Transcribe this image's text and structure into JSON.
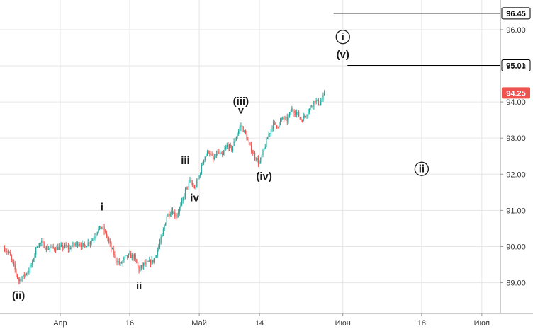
{
  "chart_data": {
    "type": "candlestick",
    "title": "",
    "xlabel": "",
    "ylabel": "",
    "ylim": [
      88.15,
      96.82
    ],
    "xlim": [
      "2018-03-19",
      "2018-07-05"
    ],
    "grid": true,
    "y_ticks": [
      "89.00",
      "90.00",
      "91.00",
      "92.00",
      "93.00",
      "94.00",
      "95.00",
      "96.00"
    ],
    "x_ticks": [
      {
        "date": "2018-04-01",
        "label": "Апр"
      },
      {
        "date": "2018-04-16",
        "label": "16"
      },
      {
        "date": "2018-05-01",
        "label": "Май"
      },
      {
        "date": "2018-05-14",
        "label": "14"
      },
      {
        "date": "2018-06-01",
        "label": "Июн"
      },
      {
        "date": "2018-06-18",
        "label": "18"
      },
      {
        "date": "2018-07-01",
        "label": "Июл"
      }
    ],
    "price_path": [
      [
        "2018-03-20",
        89.95
      ],
      [
        "2018-03-21",
        89.8
      ],
      [
        "2018-03-22",
        89.45
      ],
      [
        "2018-03-23",
        89.05
      ],
      [
        "2018-03-25",
        89.3
      ],
      [
        "2018-03-26",
        89.55
      ],
      [
        "2018-03-27",
        90.05
      ],
      [
        "2018-03-28",
        90.1
      ],
      [
        "2018-03-29",
        89.95
      ],
      [
        "2018-03-31",
        89.95
      ],
      [
        "2018-04-02",
        90.0
      ],
      [
        "2018-04-03",
        89.95
      ],
      [
        "2018-04-04",
        90.05
      ],
      [
        "2018-04-05",
        90.1
      ],
      [
        "2018-04-06",
        90.0
      ],
      [
        "2018-04-08",
        90.2
      ],
      [
        "2018-04-09",
        90.45
      ],
      [
        "2018-04-10",
        90.55
      ],
      [
        "2018-04-11",
        90.3
      ],
      [
        "2018-04-12",
        89.95
      ],
      [
        "2018-04-13",
        89.65
      ],
      [
        "2018-04-14",
        89.5
      ],
      [
        "2018-04-15",
        89.7
      ],
      [
        "2018-04-16",
        89.75
      ],
      [
        "2018-04-17",
        89.7
      ],
      [
        "2018-04-18",
        89.35
      ],
      [
        "2018-04-19",
        89.5
      ],
      [
        "2018-04-21",
        89.6
      ],
      [
        "2018-04-22",
        89.9
      ],
      [
        "2018-04-23",
        90.3
      ],
      [
        "2018-04-24",
        90.85
      ],
      [
        "2018-04-25",
        91.0
      ],
      [
        "2018-04-26",
        90.85
      ],
      [
        "2018-04-27",
        91.1
      ],
      [
        "2018-04-28",
        91.55
      ],
      [
        "2018-04-29",
        91.8
      ],
      [
        "2018-04-30",
        91.6
      ],
      [
        "2018-05-01",
        91.95
      ],
      [
        "2018-05-02",
        92.45
      ],
      [
        "2018-05-03",
        92.65
      ],
      [
        "2018-05-04",
        92.4
      ],
      [
        "2018-05-05",
        92.6
      ],
      [
        "2018-05-06",
        92.5
      ],
      [
        "2018-05-07",
        92.8
      ],
      [
        "2018-05-08",
        92.7
      ],
      [
        "2018-05-09",
        93.05
      ],
      [
        "2018-05-10",
        93.35
      ],
      [
        "2018-05-11",
        93.1
      ],
      [
        "2018-05-12",
        92.75
      ],
      [
        "2018-05-13",
        92.5
      ],
      [
        "2018-05-14",
        92.3
      ],
      [
        "2018-05-15",
        92.7
      ],
      [
        "2018-05-16",
        93.1
      ],
      [
        "2018-05-17",
        93.4
      ],
      [
        "2018-05-18",
        93.35
      ],
      [
        "2018-05-19",
        93.55
      ],
      [
        "2018-05-20",
        93.5
      ],
      [
        "2018-05-21",
        93.8
      ],
      [
        "2018-05-22",
        93.7
      ],
      [
        "2018-05-23",
        93.5
      ],
      [
        "2018-05-24",
        93.65
      ],
      [
        "2018-05-25",
        93.85
      ],
      [
        "2018-05-26",
        94.05
      ],
      [
        "2018-05-27",
        93.95
      ],
      [
        "2018-05-28",
        94.2
      ]
    ],
    "price_lines": [
      {
        "value": 96.45,
        "label": "96.45",
        "from": "2018-05-30"
      },
      {
        "value": 95.01,
        "label": "95.01",
        "from": "2018-06-02"
      }
    ],
    "last_price": {
      "value": 94.25,
      "label": "94.25",
      "color": "#ef5350"
    },
    "wave_labels": [
      {
        "text": "(ii)",
        "date": "2018-03-23",
        "price": 88.55,
        "circled": false
      },
      {
        "text": "i",
        "date": "2018-04-10",
        "price": 91.0,
        "circled": false
      },
      {
        "text": "ii",
        "date": "2018-04-18",
        "price": 88.82,
        "circled": false
      },
      {
        "text": "iii",
        "date": "2018-04-28",
        "price": 92.28,
        "circled": false
      },
      {
        "text": "iv",
        "date": "2018-04-30",
        "price": 91.25,
        "circled": false
      },
      {
        "text": "(iii)",
        "date": "2018-05-10",
        "price": 93.92,
        "circled": false
      },
      {
        "text": "v",
        "date": "2018-05-10",
        "price": 93.68,
        "circled": false
      },
      {
        "text": "(iv)",
        "date": "2018-05-15",
        "price": 91.85,
        "circled": false
      },
      {
        "text": "i",
        "date": "2018-06-01",
        "price": 95.7,
        "circled": true
      },
      {
        "text": "(v)",
        "date": "2018-06-01",
        "price": 95.22,
        "circled": false
      },
      {
        "text": "ii",
        "date": "2018-06-18",
        "price": 92.05,
        "circled": true
      }
    ],
    "colors": {
      "up": "#26a69a",
      "down": "#ef5350",
      "grid": "#e6e6e6",
      "axis": "#999999",
      "line": "#000000"
    }
  }
}
